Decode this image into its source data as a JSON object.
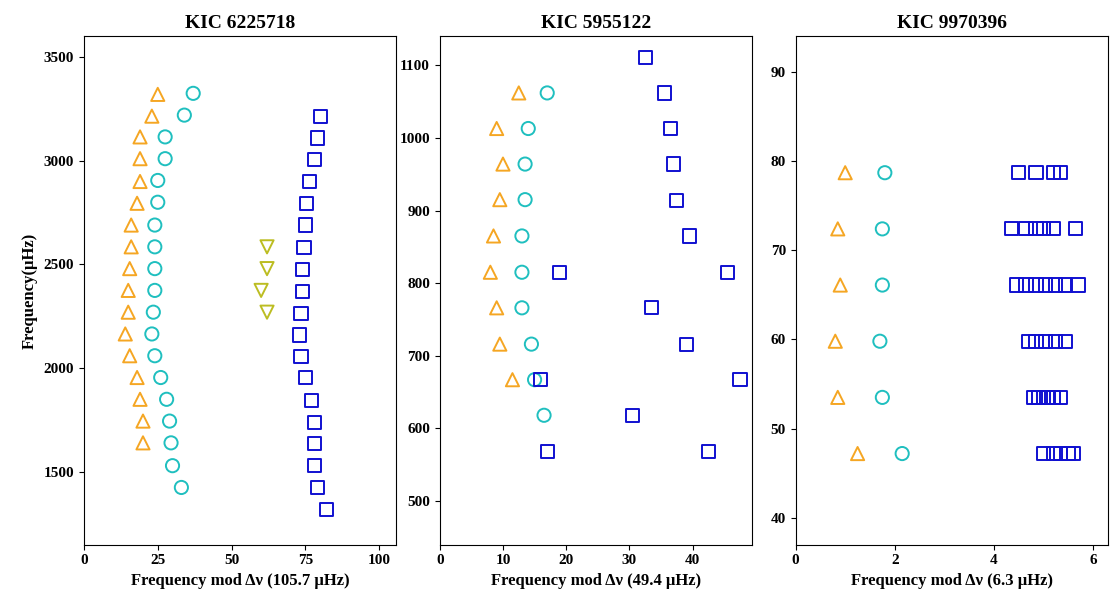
{
  "chart_data": [
    {
      "type": "scatter",
      "title": "KIC 6225718",
      "x_label": "Frequency mod Δν (105.7 μHz)",
      "y_label": "Frequency(μHz)",
      "xlim": [
        0,
        105.7
      ],
      "xticks": [
        0,
        25,
        50,
        75,
        100
      ],
      "ylim": [
        1150,
        3600
      ],
      "yticks": [
        1500,
        2000,
        2500,
        3000,
        3500
      ],
      "series": [
        {
          "color": "#f5a623",
          "marker": "triangle_up",
          "x": [
            20,
            20,
            19,
            18,
            15.5,
            14,
            15,
            15,
            15.5,
            16,
            16,
            18,
            19,
            19,
            19,
            23,
            25
          ],
          "values": [
            1640,
            1745,
            1850,
            1955,
            2060,
            2165,
            2270,
            2375,
            2480,
            2585,
            2690,
            2795,
            2900,
            3010,
            3115,
            3215,
            3320
          ]
        },
        {
          "color": "#1fbfbf",
          "marker": "circle",
          "x": [
            33,
            30,
            29.5,
            29,
            28,
            26,
            24,
            23,
            23.5,
            24,
            24,
            24,
            24,
            25,
            25,
            27.5,
            27.5,
            34,
            37
          ],
          "values": [
            1425,
            1530,
            1640,
            1745,
            1850,
            1955,
            2060,
            2165,
            2270,
            2375,
            2480,
            2585,
            2690,
            2800,
            2905,
            3010,
            3115,
            3220,
            3325
          ]
        },
        {
          "color": "#1010d0",
          "marker": "square",
          "x": [
            82,
            79,
            78,
            78,
            78,
            77,
            75,
            73.5,
            73,
            73.5,
            74,
            74,
            74.5,
            75,
            75.5,
            76.5,
            78,
            79,
            80
          ],
          "values": [
            1320,
            1425,
            1530,
            1635,
            1740,
            1845,
            1955,
            2055,
            2160,
            2265,
            2370,
            2475,
            2580,
            2690,
            2795,
            2900,
            3005,
            3110,
            3215
          ]
        },
        {
          "color": "#bcbd22",
          "marker": "triangle_down",
          "x": [
            62,
            60,
            62,
            62
          ],
          "values": [
            2270,
            2375,
            2480,
            2585
          ]
        }
      ]
    },
    {
      "type": "scatter",
      "title": "KIC 5955122",
      "x_label": "Frequency mod Δν (49.4 μHz)",
      "xlim": [
        0,
        49.4
      ],
      "xticks": [
        0,
        10,
        20,
        30,
        40
      ],
      "ylim": [
        440,
        1140
      ],
      "yticks": [
        500,
        600,
        700,
        800,
        900,
        1000,
        1100
      ],
      "series": [
        {
          "color": "#f5a623",
          "marker": "triangle_up",
          "x": [
            11.5,
            9.5,
            9,
            8,
            8.5,
            9.5,
            10,
            9,
            12.5
          ],
          "values": [
            667,
            716,
            766,
            815,
            865,
            915,
            964,
            1013,
            1062
          ]
        },
        {
          "color": "#1fbfbf",
          "marker": "circle",
          "x": [
            16.5,
            15,
            14.5,
            13,
            13,
            13,
            13.5,
            13.5,
            14,
            17
          ],
          "values": [
            618,
            667,
            716,
            766,
            815,
            865,
            915,
            964,
            1013,
            1062
          ]
        },
        {
          "color": "#1010d0",
          "marker": "square",
          "x": [
            17,
            42.5,
            30.5,
            16,
            47.5,
            39,
            33.5,
            19,
            45.5,
            39.5,
            37.5,
            37,
            36.5,
            35.5,
            32.5
          ],
          "values": [
            568,
            568,
            618,
            667,
            667,
            716,
            766,
            815,
            815,
            865,
            914,
            964,
            1013,
            1062,
            1111
          ]
        }
      ]
    },
    {
      "type": "scatter",
      "title": "KIC 9970396",
      "x_label": "Frequency mod Δν (6.3 μHz)",
      "xlim": [
        0,
        6.3
      ],
      "xticks": [
        0,
        2,
        4,
        6
      ],
      "ylim": [
        37,
        94
      ],
      "yticks": [
        40,
        50,
        60,
        70,
        80,
        90
      ],
      "series": [
        {
          "color": "#f5a623",
          "marker": "triangle_up",
          "x": [
            1.25,
            0.85,
            0.8,
            0.9,
            0.85,
            1.0
          ],
          "values": [
            47.2,
            53.5,
            59.8,
            66.1,
            72.4,
            78.7
          ]
        },
        {
          "color": "#1fbfbf",
          "marker": "circle",
          "x": [
            2.15,
            1.75,
            1.7,
            1.75,
            1.75,
            1.8
          ],
          "values": [
            47.2,
            53.5,
            59.8,
            66.1,
            72.4,
            78.7
          ]
        },
        {
          "color": "#1010d0",
          "marker": "square",
          "x": [
            5.0,
            5.2,
            5.35,
            5.5,
            5.6,
            4.8,
            4.9,
            5.0,
            5.1,
            5.2,
            5.35,
            4.7,
            4.85,
            5.05,
            5.25,
            5.45,
            4.45,
            4.65,
            4.85,
            5.05,
            5.25,
            5.45,
            5.7,
            4.35,
            4.65,
            4.85,
            5.0,
            5.2,
            5.65,
            4.5,
            4.85,
            5.2,
            5.35
          ],
          "values": [
            47.2,
            47.2,
            47.2,
            47.2,
            47.2,
            53.5,
            53.5,
            53.5,
            53.5,
            53.5,
            53.5,
            59.8,
            59.8,
            59.8,
            59.8,
            59.8,
            66.1,
            66.1,
            66.1,
            66.1,
            66.1,
            66.1,
            66.1,
            72.4,
            72.4,
            72.4,
            72.4,
            72.4,
            72.4,
            78.7,
            78.7,
            78.7,
            78.7
          ]
        }
      ]
    }
  ]
}
